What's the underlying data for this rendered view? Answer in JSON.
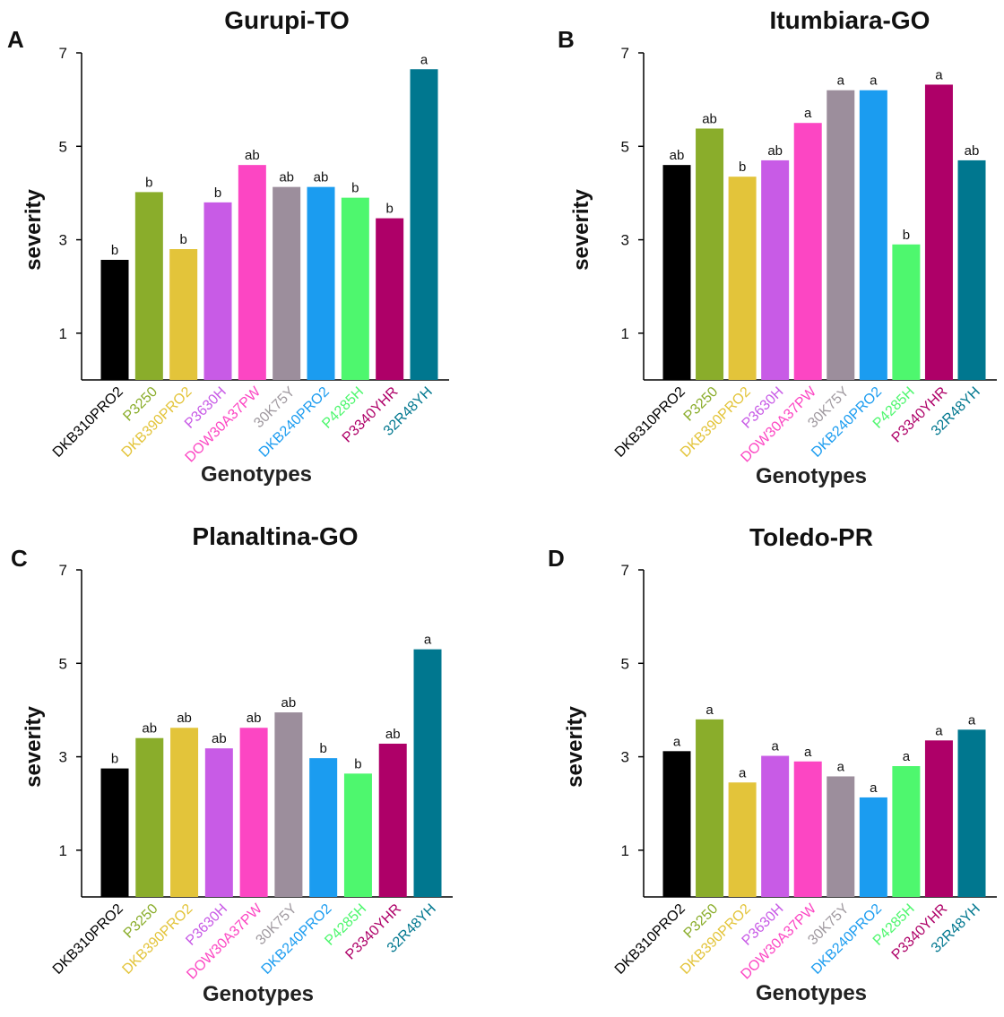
{
  "chart_data": [
    {
      "type": "bar",
      "panel": "A",
      "title": "Gurupi-TO",
      "xlabel": "Genotypes",
      "ylabel": "severity",
      "ylim": [
        0,
        7
      ],
      "yticks": [
        1,
        3,
        5,
        7
      ],
      "categories": [
        "DKB310PRO2",
        "P3250",
        "DKB390PRO2",
        "P3630H",
        "DOW30A37PW",
        "30K75Y",
        "DKB240PRO2",
        "P4285H",
        "P3340YHR",
        "32R48YH"
      ],
      "values": [
        2.57,
        4.02,
        2.8,
        3.8,
        4.6,
        4.13,
        4.13,
        3.9,
        3.46,
        6.65
      ],
      "labels": [
        "b",
        "b",
        "b",
        "b",
        "ab",
        "ab",
        "ab",
        "b",
        "b",
        "a"
      ]
    },
    {
      "type": "bar",
      "panel": "B",
      "title": "Itumbiara-GO",
      "xlabel": "Genotypes",
      "ylabel": "severity",
      "ylim": [
        0,
        7
      ],
      "yticks": [
        1,
        3,
        5,
        7
      ],
      "categories": [
        "DKB310PRO2",
        "P3250",
        "DKB390PRO2",
        "P3630H",
        "DOW30A37PW",
        "30K75Y",
        "DKB240PRO2",
        "P4285H",
        "P3340YHR",
        "32R48YH"
      ],
      "values": [
        4.6,
        5.38,
        4.35,
        4.7,
        5.5,
        6.2,
        6.2,
        2.9,
        6.32,
        4.7
      ],
      "labels": [
        "ab",
        "ab",
        "b",
        "ab",
        "a",
        "a",
        "a",
        "b",
        "a",
        "ab"
      ]
    },
    {
      "type": "bar",
      "panel": "C",
      "title": "Planaltina-GO",
      "xlabel": "Genotypes",
      "ylabel": "severity",
      "ylim": [
        0,
        7
      ],
      "yticks": [
        1,
        3,
        5,
        7
      ],
      "categories": [
        "DKB310PRO2",
        "P3250",
        "DKB390PRO2",
        "P3630H",
        "DOW30A37PW",
        "30K75Y",
        "DKB240PRO2",
        "P4285H",
        "P3340YHR",
        "32R48YH"
      ],
      "values": [
        2.75,
        3.4,
        3.62,
        3.18,
        3.62,
        3.95,
        2.97,
        2.64,
        3.28,
        5.3
      ],
      "labels": [
        "b",
        "ab",
        "ab",
        "ab",
        "ab",
        "ab",
        "b",
        "b",
        "ab",
        "a"
      ]
    },
    {
      "type": "bar",
      "panel": "D",
      "title": "Toledo-PR",
      "xlabel": "Genotypes",
      "ylabel": "severity",
      "ylim": [
        0,
        7
      ],
      "yticks": [
        1,
        3,
        5,
        7
      ],
      "categories": [
        "DKB310PRO2",
        "P3250",
        "DKB390PRO2",
        "P3630H",
        "DOW30A37PW",
        "30K75Y",
        "DKB240PRO2",
        "P4285H",
        "P3340YHR",
        "32R48YH"
      ],
      "values": [
        3.12,
        3.8,
        2.45,
        3.02,
        2.9,
        2.58,
        2.13,
        2.8,
        3.35,
        3.58
      ],
      "labels": [
        "a",
        "a",
        "a",
        "a",
        "a",
        "a",
        "a",
        "a",
        "a",
        "a"
      ]
    }
  ],
  "colors": [
    "#000000",
    "#8aad2b",
    "#e3c43a",
    "#c85be6",
    "#fc46c3",
    "#9c8e9c",
    "#1b9cf0",
    "#4ef76e",
    "#ae0068",
    "#00778f"
  ],
  "tick_colors": [
    "#000000",
    "#8aad2b",
    "#e3c43a",
    "#c85be6",
    "#fc46c3",
    "#a09aa0",
    "#1b9cf0",
    "#4ef76e",
    "#ae0068",
    "#00778f"
  ]
}
